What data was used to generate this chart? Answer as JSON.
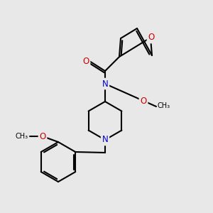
{
  "bg_color": "#e8e8e8",
  "atom_colors": {
    "C": "#000000",
    "N": "#0000cc",
    "O": "#cc0000"
  },
  "bond_color": "#000000",
  "figsize": [
    3.0,
    3.0
  ],
  "dpi": 100
}
